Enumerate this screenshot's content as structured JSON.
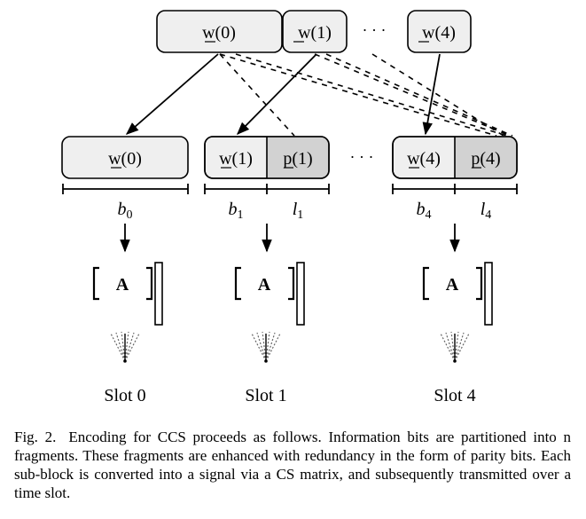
{
  "message_blocks": [
    {
      "id": "w0",
      "label": "w(0)"
    },
    {
      "id": "w1",
      "label": "w(1)"
    },
    {
      "id": "w4",
      "label": "w(4)"
    }
  ],
  "ellipsis": "· · ·",
  "subblocks": [
    {
      "info": "w(0)",
      "parity": null,
      "info_len": "b0",
      "parity_len": null,
      "slot": "Slot 0"
    },
    {
      "info": "w(1)",
      "parity": "p(1)",
      "info_len": "b1",
      "parity_len": "l1",
      "slot": "Slot 1"
    },
    {
      "info": "w(4)",
      "parity": "p(4)",
      "info_len": "b4",
      "parity_len": "l4",
      "slot": "Slot 4"
    }
  ],
  "matrix_label": "A",
  "colors": {
    "info_fill": "#efefef",
    "parity_fill": "#d2d2d2",
    "stroke": "#000000"
  },
  "caption": {
    "fig": "Fig. 2.",
    "text": "Encoding for CCS proceeds as follows. Information bits are partitioned into n fragments. These fragments are enhanced with redundancy in the form of parity bits. Each sub-block is converted into a signal via a CS matrix, and subsequently transmitted over a time slot."
  }
}
